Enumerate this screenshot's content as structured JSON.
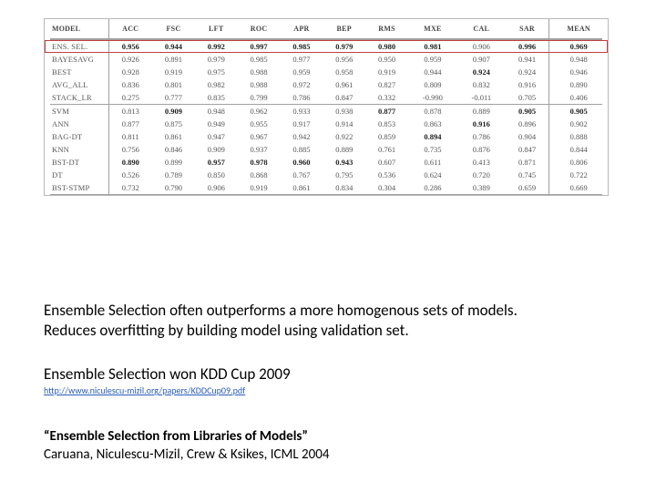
{
  "table": {
    "columns": [
      "MODEL",
      "ACC",
      "FSC",
      "LFT",
      "ROC",
      "APR",
      "BEP",
      "RMS",
      "MXE",
      "CAL",
      "SAR",
      "MEAN"
    ],
    "group1": [
      {
        "label": "ENS. SEL.",
        "highlight": true,
        "vals": [
          {
            "v": "0.956",
            "b": 1
          },
          {
            "v": "0.944",
            "b": 1
          },
          {
            "v": "0.992",
            "b": 1
          },
          {
            "v": "0.997",
            "b": 1
          },
          {
            "v": "0.985",
            "b": 1
          },
          {
            "v": "0.979",
            "b": 1
          },
          {
            "v": "0.980",
            "b": 1
          },
          {
            "v": "0.981",
            "b": 1
          },
          {
            "v": "0.906",
            "b": 0
          },
          {
            "v": "0.996",
            "b": 1
          },
          {
            "v": "0.969",
            "b": 1
          }
        ]
      },
      {
        "label": "BAYESAVG",
        "vals": [
          {
            "v": "0.926",
            "b": 0
          },
          {
            "v": "0.891",
            "b": 0
          },
          {
            "v": "0.979",
            "b": 0
          },
          {
            "v": "0.985",
            "b": 0
          },
          {
            "v": "0.977",
            "b": 0
          },
          {
            "v": "0.956",
            "b": 0
          },
          {
            "v": "0.950",
            "b": 0
          },
          {
            "v": "0.959",
            "b": 0
          },
          {
            "v": "0.907",
            "b": 0
          },
          {
            "v": "0.941",
            "b": 0
          },
          {
            "v": "0.948",
            "b": 0
          }
        ]
      },
      {
        "label": "BEST",
        "vals": [
          {
            "v": "0.928",
            "b": 0
          },
          {
            "v": "0.919",
            "b": 0
          },
          {
            "v": "0.975",
            "b": 0
          },
          {
            "v": "0.988",
            "b": 0
          },
          {
            "v": "0.959",
            "b": 0
          },
          {
            "v": "0.958",
            "b": 0
          },
          {
            "v": "0.919",
            "b": 0
          },
          {
            "v": "0.944",
            "b": 0
          },
          {
            "v": "0.924",
            "b": 1
          },
          {
            "v": "0.924",
            "b": 0
          },
          {
            "v": "0.946",
            "b": 0
          }
        ]
      },
      {
        "label": "AVG_ALL",
        "vals": [
          {
            "v": "0.836",
            "b": 0
          },
          {
            "v": "0.801",
            "b": 0
          },
          {
            "v": "0.982",
            "b": 0
          },
          {
            "v": "0.988",
            "b": 0
          },
          {
            "v": "0.972",
            "b": 0
          },
          {
            "v": "0.961",
            "b": 0
          },
          {
            "v": "0.827",
            "b": 0
          },
          {
            "v": "0.809",
            "b": 0
          },
          {
            "v": "0.832",
            "b": 0
          },
          {
            "v": "0.916",
            "b": 0
          },
          {
            "v": "0.890",
            "b": 0
          }
        ]
      },
      {
        "label": "STACK_LR",
        "vals": [
          {
            "v": "0.275",
            "b": 0
          },
          {
            "v": "0.777",
            "b": 0
          },
          {
            "v": "0.835",
            "b": 0
          },
          {
            "v": "0.799",
            "b": 0
          },
          {
            "v": "0.786",
            "b": 0
          },
          {
            "v": "0.847",
            "b": 0
          },
          {
            "v": "0.332",
            "b": 0
          },
          {
            "v": "-0.990",
            "b": 0
          },
          {
            "v": "-0.011",
            "b": 0
          },
          {
            "v": "0.705",
            "b": 0
          },
          {
            "v": "0.406",
            "b": 0
          }
        ]
      }
    ],
    "group2": [
      {
        "label": "SVM",
        "vals": [
          {
            "v": "0.813",
            "b": 0
          },
          {
            "v": "0.909",
            "b": 1
          },
          {
            "v": "0.948",
            "b": 0
          },
          {
            "v": "0.962",
            "b": 0
          },
          {
            "v": "0.933",
            "b": 0
          },
          {
            "v": "0.938",
            "b": 0
          },
          {
            "v": "0.877",
            "b": 1
          },
          {
            "v": "0.878",
            "b": 0
          },
          {
            "v": "0.889",
            "b": 0
          },
          {
            "v": "0.905",
            "b": 1
          },
          {
            "v": "0.905",
            "b": 1
          }
        ]
      },
      {
        "label": "ANN",
        "vals": [
          {
            "v": "0.877",
            "b": 0
          },
          {
            "v": "0.875",
            "b": 0
          },
          {
            "v": "0.949",
            "b": 0
          },
          {
            "v": "0.955",
            "b": 0
          },
          {
            "v": "0.917",
            "b": 0
          },
          {
            "v": "0.914",
            "b": 0
          },
          {
            "v": "0.853",
            "b": 0
          },
          {
            "v": "0.863",
            "b": 0
          },
          {
            "v": "0.916",
            "b": 1
          },
          {
            "v": "0.896",
            "b": 0
          },
          {
            "v": "0.902",
            "b": 0
          }
        ]
      },
      {
        "label": "BAG-DT",
        "vals": [
          {
            "v": "0.811",
            "b": 0
          },
          {
            "v": "0.861",
            "b": 0
          },
          {
            "v": "0.947",
            "b": 0
          },
          {
            "v": "0.967",
            "b": 0
          },
          {
            "v": "0.942",
            "b": 0
          },
          {
            "v": "0.922",
            "b": 0
          },
          {
            "v": "0.859",
            "b": 0
          },
          {
            "v": "0.894",
            "b": 1
          },
          {
            "v": "0.786",
            "b": 0
          },
          {
            "v": "0.904",
            "b": 0
          },
          {
            "v": "0.888",
            "b": 0
          }
        ]
      },
      {
        "label": "KNN",
        "vals": [
          {
            "v": "0.756",
            "b": 0
          },
          {
            "v": "0.846",
            "b": 0
          },
          {
            "v": "0.909",
            "b": 0
          },
          {
            "v": "0.937",
            "b": 0
          },
          {
            "v": "0.885",
            "b": 0
          },
          {
            "v": "0.889",
            "b": 0
          },
          {
            "v": "0.761",
            "b": 0
          },
          {
            "v": "0.735",
            "b": 0
          },
          {
            "v": "0.876",
            "b": 0
          },
          {
            "v": "0.847",
            "b": 0
          },
          {
            "v": "0.844",
            "b": 0
          }
        ]
      },
      {
        "label": "BST-DT",
        "vals": [
          {
            "v": "0.890",
            "b": 1
          },
          {
            "v": "0.899",
            "b": 0
          },
          {
            "v": "0.957",
            "b": 1
          },
          {
            "v": "0.978",
            "b": 1
          },
          {
            "v": "0.960",
            "b": 1
          },
          {
            "v": "0.943",
            "b": 1
          },
          {
            "v": "0.607",
            "b": 0
          },
          {
            "v": "0.611",
            "b": 0
          },
          {
            "v": "0.413",
            "b": 0
          },
          {
            "v": "0.871",
            "b": 0
          },
          {
            "v": "0.806",
            "b": 0
          }
        ]
      },
      {
        "label": "DT",
        "vals": [
          {
            "v": "0.526",
            "b": 0
          },
          {
            "v": "0.789",
            "b": 0
          },
          {
            "v": "0.850",
            "b": 0
          },
          {
            "v": "0.868",
            "b": 0
          },
          {
            "v": "0.767",
            "b": 0
          },
          {
            "v": "0.795",
            "b": 0
          },
          {
            "v": "0.536",
            "b": 0
          },
          {
            "v": "0.624",
            "b": 0
          },
          {
            "v": "0.720",
            "b": 0
          },
          {
            "v": "0.745",
            "b": 0
          },
          {
            "v": "0.722",
            "b": 0
          }
        ]
      },
      {
        "label": "BST-STMP",
        "vals": [
          {
            "v": "0.732",
            "b": 0
          },
          {
            "v": "0.790",
            "b": 0
          },
          {
            "v": "0.906",
            "b": 0
          },
          {
            "v": "0.919",
            "b": 0
          },
          {
            "v": "0.861",
            "b": 0
          },
          {
            "v": "0.834",
            "b": 0
          },
          {
            "v": "0.304",
            "b": 0
          },
          {
            "v": "0.286",
            "b": 0
          },
          {
            "v": "0.389",
            "b": 0
          },
          {
            "v": "0.659",
            "b": 0
          },
          {
            "v": "0.669",
            "b": 0
          }
        ]
      }
    ]
  },
  "text": {
    "p1a": "Ensemble Selection often outperforms a more homogenous sets of models.",
    "p1b": "Reduces overfitting by building model using validation set.",
    "p2": "Ensemble Selection won KDD Cup 2009",
    "link": "http://www.niculescu-mizil.org/papers/KDDCup09.pdf",
    "p3": "“Ensemble Selection from Libraries of Models”",
    "p4": "Caruana, Niculescu-Mizil, Crew & Ksikes, ICML 2004"
  },
  "style": {
    "highlight_color": "#c04040",
    "border_color": "#a0a0a0",
    "text_color": "#555555",
    "link_color": "#2a5db8"
  }
}
